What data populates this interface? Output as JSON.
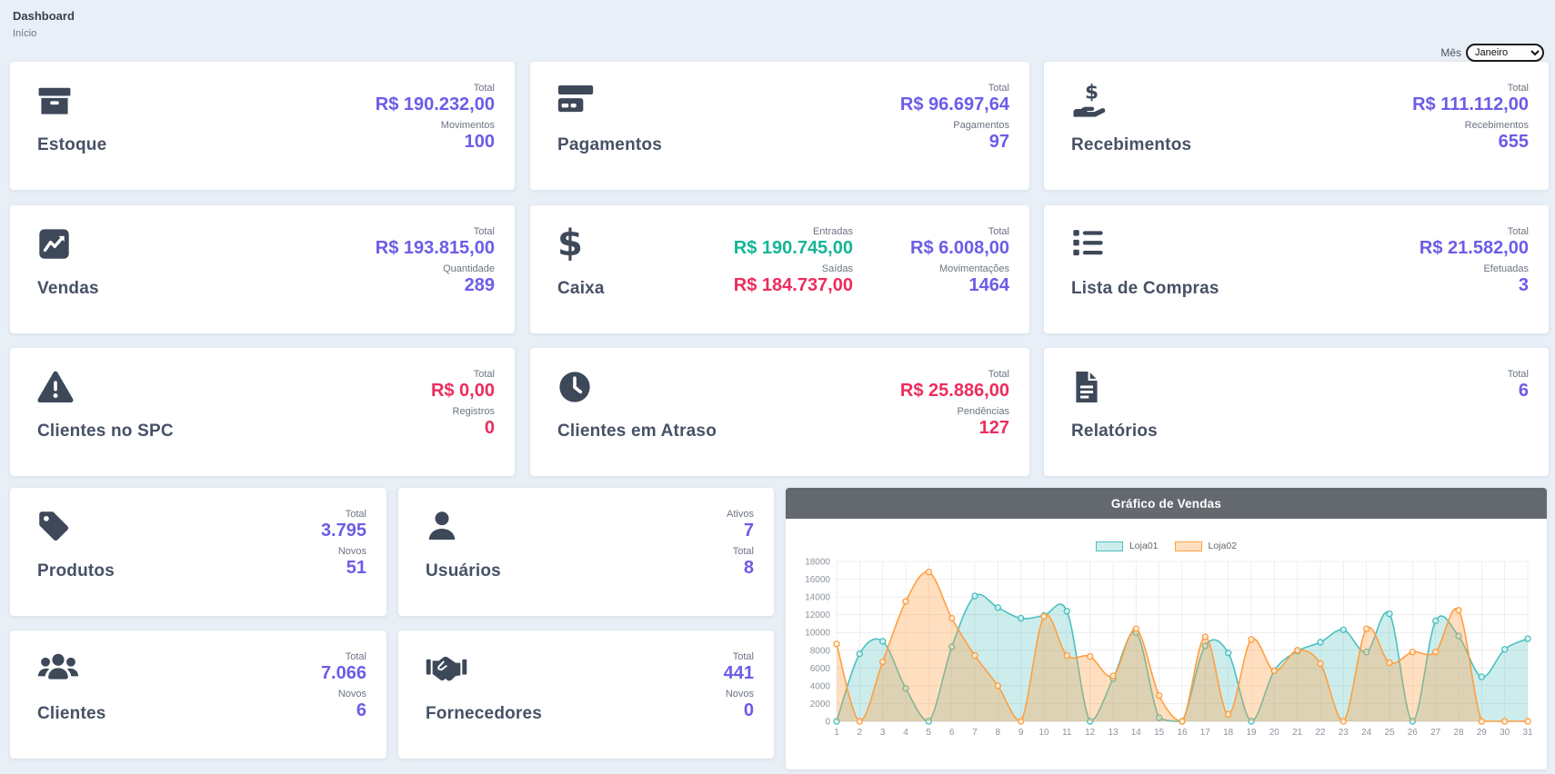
{
  "page": {
    "title": "Dashboard",
    "breadcrumb": "Início"
  },
  "month_filter": {
    "label": "Mês",
    "selected": "Janeiro"
  },
  "cards": {
    "estoque": {
      "title": "Estoque",
      "stats": [
        {
          "label": "Total",
          "value": "R$ 190.232,00"
        },
        {
          "label": "Movimentos",
          "value": "100"
        }
      ]
    },
    "pagamentos": {
      "title": "Pagamentos",
      "stats": [
        {
          "label": "Total",
          "value": "R$ 96.697,64"
        },
        {
          "label": "Pagamentos",
          "value": "97"
        }
      ]
    },
    "recebimentos": {
      "title": "Recebimentos",
      "stats": [
        {
          "label": "Total",
          "value": "R$ 111.112,00"
        },
        {
          "label": "Recebimentos",
          "value": "655"
        }
      ]
    },
    "vendas": {
      "title": "Vendas",
      "stats": [
        {
          "label": "Total",
          "value": "R$ 193.815,00"
        },
        {
          "label": "Quantidade",
          "value": "289"
        }
      ]
    },
    "caixa": {
      "title": "Caixa",
      "stats": [
        {
          "label": "Entradas",
          "value": "R$ 190.745,00"
        },
        {
          "label": "Saídas",
          "value": "R$ 184.737,00"
        },
        {
          "label": "Total",
          "value": "R$ 6.008,00"
        },
        {
          "label": "Movimentações",
          "value": "1464"
        }
      ]
    },
    "lista_compras": {
      "title": "Lista de Compras",
      "stats": [
        {
          "label": "Total",
          "value": "R$ 21.582,00"
        },
        {
          "label": "Efetuadas",
          "value": "3"
        }
      ]
    },
    "clientes_spc": {
      "title": "Clientes no SPC",
      "stats": [
        {
          "label": "Total",
          "value": "R$ 0,00"
        },
        {
          "label": "Registros",
          "value": "0"
        }
      ]
    },
    "clientes_atraso": {
      "title": "Clientes em Atraso",
      "stats": [
        {
          "label": "Total",
          "value": "R$ 25.886,00"
        },
        {
          "label": "Pendências",
          "value": "127"
        }
      ]
    },
    "relatorios": {
      "title": "Relatórios",
      "stats": [
        {
          "label": "Total",
          "value": "6"
        }
      ]
    },
    "produtos": {
      "title": "Produtos",
      "stats": [
        {
          "label": "Total",
          "value": "3.795"
        },
        {
          "label": "Novos",
          "value": "51"
        }
      ]
    },
    "usuarios": {
      "title": "Usuários",
      "stats": [
        {
          "label": "Ativos",
          "value": "7"
        },
        {
          "label": "Total",
          "value": "8"
        }
      ]
    },
    "clientes": {
      "title": "Clientes",
      "stats": [
        {
          "label": "Total",
          "value": "7.066"
        },
        {
          "label": "Novos",
          "value": "6"
        }
      ]
    },
    "fornecedores": {
      "title": "Fornecedores",
      "stats": [
        {
          "label": "Total",
          "value": "441"
        },
        {
          "label": "Novos",
          "value": "0"
        }
      ]
    }
  },
  "colors": {
    "accent_purple": "#6c5ce7",
    "positive_green": "#14b795",
    "negative_red": "#ec2d5e",
    "icon_slate": "#3d4859",
    "chart_header_bg": "#63696f",
    "loja01": "#4bc0c0",
    "loja02": "#ff9f40"
  },
  "chart_data": {
    "type": "area",
    "title": "Gráfico de Vendas",
    "x": [
      1,
      2,
      3,
      4,
      5,
      6,
      7,
      8,
      9,
      10,
      11,
      12,
      13,
      14,
      15,
      16,
      17,
      18,
      19,
      20,
      21,
      22,
      23,
      24,
      25,
      26,
      27,
      28,
      29,
      30,
      31
    ],
    "series": [
      {
        "name": "Loja01",
        "color": "#4bc0c0",
        "fill": "rgba(75,192,192,0.28)",
        "values": [
          0,
          7600,
          9000,
          3700,
          0,
          8400,
          14100,
          12800,
          11600,
          11900,
          12400,
          0,
          4800,
          10000,
          400,
          0,
          8500,
          7700,
          0,
          5700,
          7900,
          8900,
          10300,
          7800,
          12100,
          0,
          11300,
          9600,
          5000,
          8100,
          9300
        ]
      },
      {
        "name": "Loja02",
        "color": "#ff9f40",
        "fill": "rgba(255,159,64,0.33)",
        "values": [
          8700,
          0,
          6700,
          13500,
          16800,
          11600,
          7400,
          4000,
          0,
          11800,
          7400,
          7300,
          5100,
          10400,
          2900,
          0,
          9500,
          800,
          9200,
          5700,
          8000,
          6500,
          0,
          10400,
          6600,
          7800,
          7800,
          12500,
          0,
          0,
          0
        ]
      }
    ],
    "ylim": [
      0,
      18000
    ],
    "ytick_step": 2000,
    "grid": true,
    "legend_position": "top"
  }
}
